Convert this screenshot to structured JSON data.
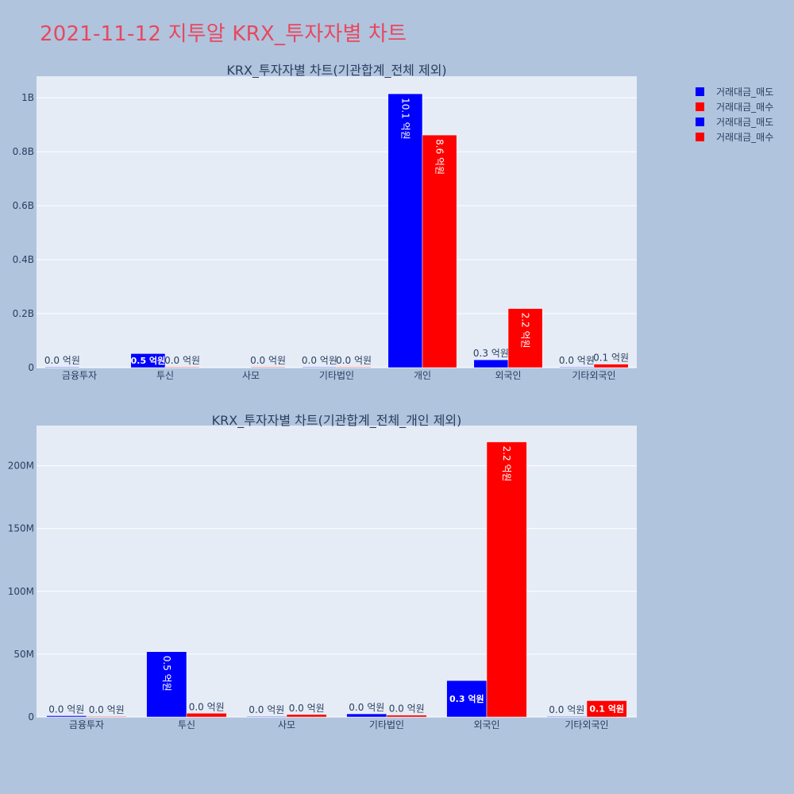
{
  "page": {
    "title": "2021-11-12 지투알 KRX_투자자별 차트"
  },
  "colors": {
    "sell": "#0000ff",
    "buy": "#ff0000"
  },
  "legend": [
    {
      "label": "거래대금_매도",
      "color": "#0000ff"
    },
    {
      "label": "거래대금_매수",
      "color": "#ff0000"
    },
    {
      "label": "거래대금_매도",
      "color": "#0000ff"
    },
    {
      "label": "거래대금_매수",
      "color": "#ff0000"
    }
  ],
  "chart_data": [
    {
      "type": "bar",
      "title": "KRX_투자자별 차트(기관합계_전체 제외)",
      "categories": [
        "금융투자",
        "투신",
        "사모",
        "기타법인",
        "개인",
        "외국인",
        "기타외국인"
      ],
      "ylim": [
        0,
        1080000000
      ],
      "yticks": [
        0,
        200000000,
        400000000,
        600000000,
        800000000,
        1000000000
      ],
      "ytick_labels": [
        "0",
        "0.2B",
        "0.4B",
        "0.6B",
        "0.8B",
        "1B"
      ],
      "grid": true,
      "legend_position": "top-right",
      "series": [
        {
          "name": "거래대금_매도",
          "color": "#0000ff",
          "values": [
            0,
            52000000,
            null,
            1000000,
            1015000000,
            29000000,
            0
          ],
          "labels": [
            "0.0 억원",
            "0.5 억원",
            "",
            "0.0 억원",
            "10.1 억원",
            "0.3 억원",
            "0.0 억원"
          ]
        },
        {
          "name": "거래대금_매수",
          "color": "#ff0000",
          "values": [
            null,
            2000000,
            1000000,
            1000000,
            862000000,
            219000000,
            13000000
          ],
          "labels": [
            "",
            "0.0 억원",
            "0.0 억원",
            "0.0 억원",
            "8.6 억원",
            "2.2 억원",
            "0.1 억원"
          ]
        }
      ]
    },
    {
      "type": "bar",
      "title": "KRX_투자자별 차트(기관합계_전체_개인 제외)",
      "categories": [
        "금융투자",
        "투신",
        "사모",
        "기타법인",
        "외국인",
        "기타외국인"
      ],
      "ylim": [
        0,
        232000000
      ],
      "yticks": [
        0,
        50000000,
        100000000,
        150000000,
        200000000
      ],
      "ytick_labels": [
        "0",
        "50M",
        "100M",
        "150M",
        "200M"
      ],
      "grid": true,
      "legend_position": "top-right",
      "series": [
        {
          "name": "거래대금_매도",
          "color": "#0000ff",
          "values": [
            1000000,
            52000000,
            0,
            2500000,
            29000000,
            500000
          ],
          "labels": [
            "0.0 억원",
            "0.5 억원",
            "0.0 억원",
            "0.0 억원",
            "0.3 억원",
            "0.0 억원"
          ]
        },
        {
          "name": "거래대금_매수",
          "color": "#ff0000",
          "values": [
            0,
            3000000,
            2000000,
            1500000,
            219000000,
            13000000
          ],
          "labels": [
            "0.0 억원",
            "0.0 억원",
            "0.0 억원",
            "0.0 억원",
            "2.2 억원",
            "0.1 억원"
          ]
        }
      ]
    }
  ]
}
